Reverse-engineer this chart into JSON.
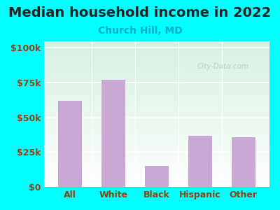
{
  "title": "Median household income in 2022",
  "subtitle": "Church Hill, MD",
  "categories": [
    "All",
    "White",
    "Black",
    "Hispanic",
    "Other"
  ],
  "values": [
    62000,
    77000,
    15000,
    37000,
    36000
  ],
  "bar_color": "#c9a8d4",
  "title_color": "#222222",
  "subtitle_color": "#00aacc",
  "axis_label_color": "#8B4513",
  "background_outer": "#00ffff",
  "background_inner_top": "#d6f0e0",
  "background_inner_bottom": "#ffffff",
  "yticks": [
    0,
    25000,
    50000,
    75000,
    100000
  ],
  "ytick_labels": [
    "$0",
    "$25k",
    "$50k",
    "$75k",
    "$100k"
  ],
  "ylim": [
    0,
    105000
  ],
  "watermark": "City-Data.com",
  "title_fontsize": 14,
  "subtitle_fontsize": 10,
  "tick_fontsize": 9,
  "xlabel_fontsize": 9
}
